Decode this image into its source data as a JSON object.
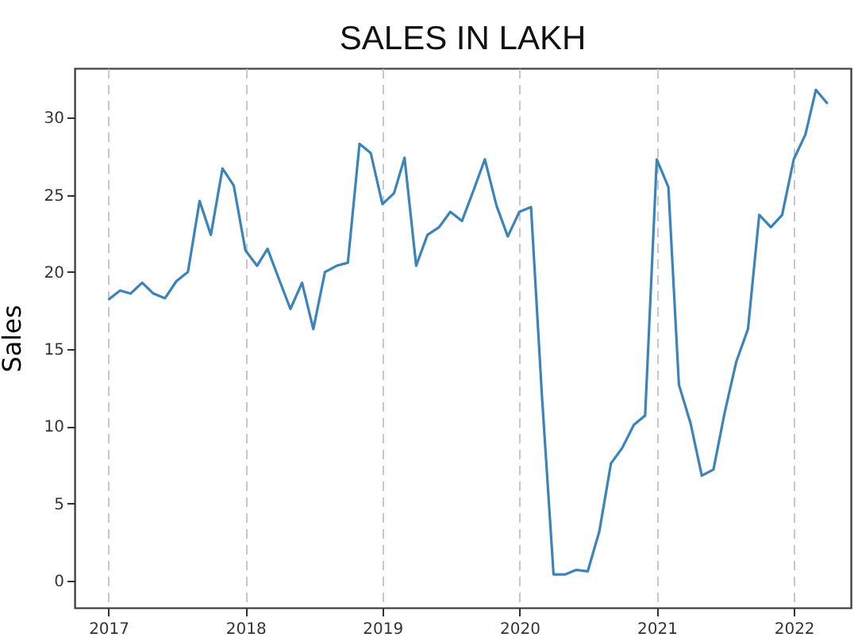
{
  "chart_data": {
    "type": "line",
    "title": "SALES IN LAKH",
    "ylabel": "Sales",
    "x": [
      "2017-01",
      "2017-02",
      "2017-03",
      "2017-04",
      "2017-05",
      "2017-06",
      "2017-07",
      "2017-08",
      "2017-09",
      "2017-10",
      "2017-11",
      "2017-12",
      "2018-01",
      "2018-02",
      "2018-03",
      "2018-04",
      "2018-05",
      "2018-06",
      "2018-07",
      "2018-08",
      "2018-09",
      "2018-10",
      "2018-11",
      "2018-12",
      "2019-01",
      "2019-02",
      "2019-03",
      "2019-04",
      "2019-05",
      "2019-06",
      "2019-07",
      "2019-08",
      "2019-09",
      "2019-10",
      "2019-11",
      "2019-12",
      "2020-01",
      "2020-02",
      "2020-03",
      "2020-04",
      "2020-05",
      "2020-06",
      "2020-07",
      "2020-08",
      "2020-09",
      "2020-10",
      "2020-11",
      "2020-12",
      "2021-01",
      "2021-02",
      "2021-03",
      "2021-04",
      "2021-05",
      "2021-06",
      "2021-07",
      "2021-08",
      "2021-09",
      "2021-10",
      "2021-11",
      "2021-12",
      "2022-01",
      "2022-02",
      "2022-03",
      "2022-04"
    ],
    "series": [
      {
        "color": "#3b84bb",
        "values": [
          18.2,
          18.8,
          18.6,
          19.3,
          18.6,
          18.3,
          19.4,
          20.0,
          24.6,
          22.4,
          26.7,
          25.6,
          21.4,
          20.4,
          21.5,
          19.5,
          17.6,
          19.3,
          16.3,
          20.0,
          20.4,
          20.6,
          28.3,
          27.7,
          24.4,
          25.1,
          27.4,
          20.4,
          22.4,
          22.9,
          23.9,
          23.3,
          25.3,
          27.3,
          24.3,
          22.3,
          23.9,
          24.2,
          12.0,
          0.4,
          0.4,
          0.7,
          0.6,
          3.2,
          7.6,
          8.6,
          10.1,
          10.7,
          27.3,
          25.5,
          12.7,
          10.2,
          6.8,
          7.2,
          10.9,
          14.2,
          16.3,
          23.7,
          22.9,
          23.7,
          27.3,
          28.9,
          31.8,
          30.9
        ]
      }
    ],
    "xlim": [
      "2016-10-03",
      "2022-06-02"
    ],
    "xticks": [
      "2017",
      "2018",
      "2019",
      "2020",
      "2021",
      "2022"
    ],
    "ylim": [
      -1.75,
      33.2
    ],
    "yticks": [
      0,
      5,
      10,
      15,
      20,
      25,
      30
    ],
    "grid": "x",
    "line_style": "solid"
  }
}
